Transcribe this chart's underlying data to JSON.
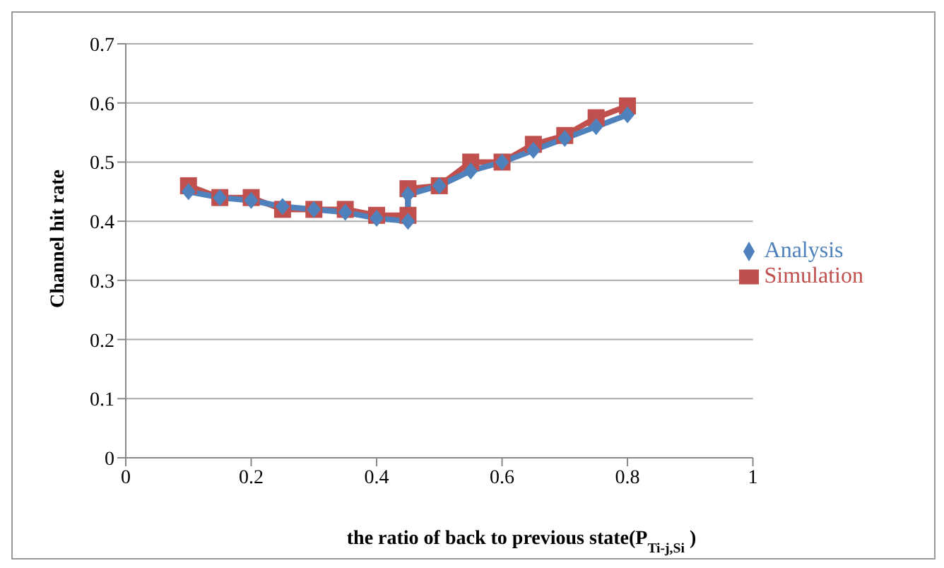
{
  "chart_data": {
    "type": "line",
    "xlabel": "the ratio of back to previous state(P$_{Ti-j,Si}$ )",
    "ylabel": "Channel hit rate",
    "xlim": [
      0,
      1
    ],
    "xticks": [
      0,
      0.2,
      0.4,
      0.6,
      0.8,
      1
    ],
    "ylim": [
      0,
      0.7
    ],
    "yticks": [
      0,
      0.1,
      0.2,
      0.3,
      0.4,
      0.5,
      0.6,
      0.7
    ],
    "grid": "y",
    "legend": "right",
    "x": [
      0.1,
      0.15,
      0.2,
      0.25,
      0.3,
      0.35,
      0.4,
      0.45,
      0.45,
      0.5,
      0.55,
      0.6,
      0.65,
      0.7,
      0.75,
      0.8
    ],
    "series": [
      {
        "name": "Simulation",
        "color": "#c0504d",
        "marker": "square",
        "values": [
          0.46,
          0.44,
          0.44,
          0.42,
          0.42,
          0.42,
          0.41,
          0.41,
          0.455,
          0.46,
          0.5,
          0.5,
          0.53,
          0.545,
          0.575,
          0.595
        ]
      },
      {
        "name": "Analysis",
        "color": "#4f81bd",
        "marker": "diamond",
        "values": [
          0.45,
          0.44,
          0.435,
          0.425,
          0.42,
          0.415,
          0.405,
          0.4,
          0.445,
          0.46,
          0.485,
          0.5,
          0.52,
          0.54,
          0.56,
          0.58
        ]
      }
    ]
  }
}
